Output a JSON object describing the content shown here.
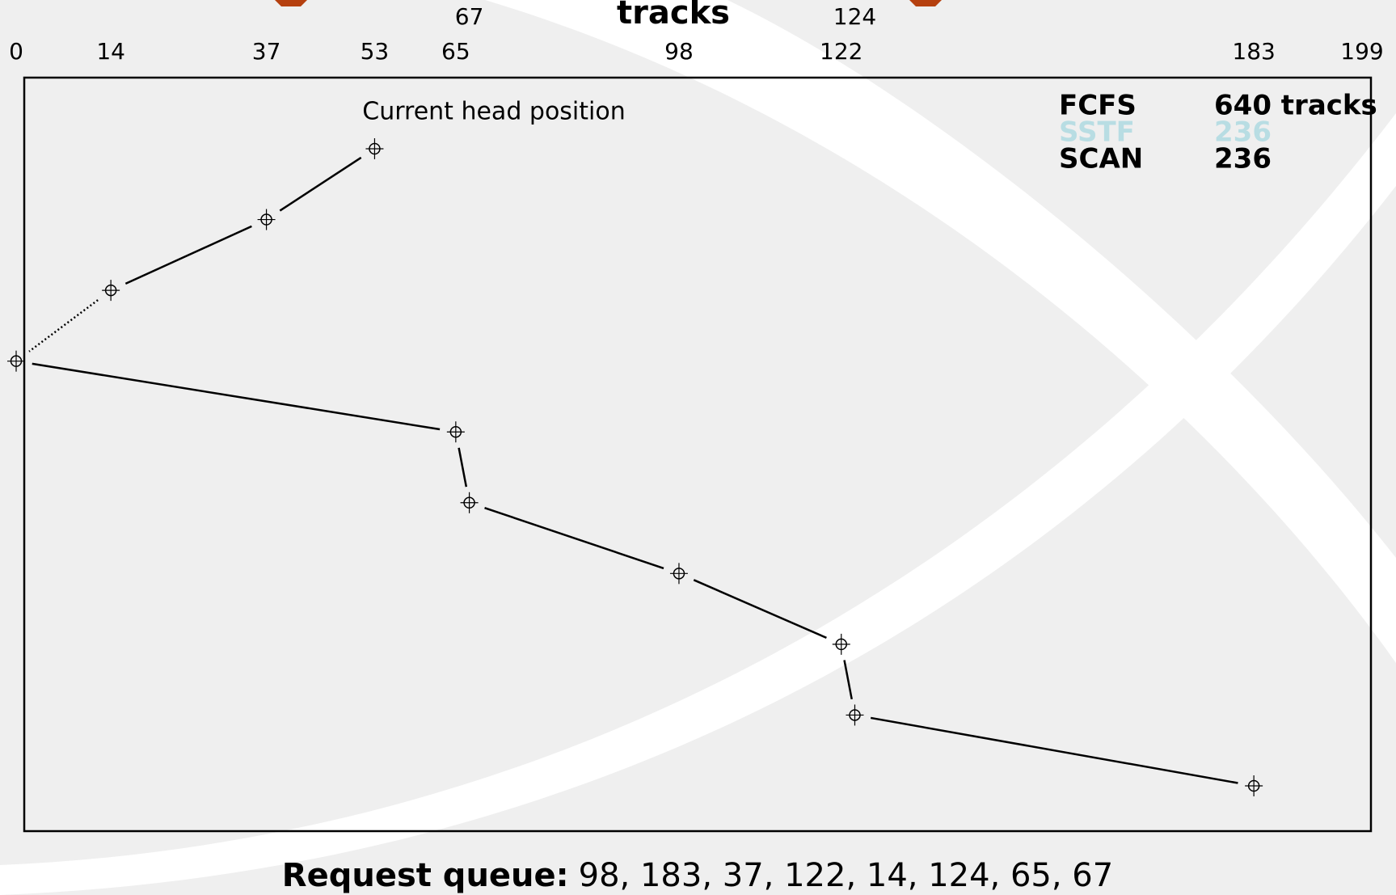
{
  "chart_data": {
    "type": "line",
    "title": "tracks",
    "annotation": "Current head position",
    "series": [
      {
        "name": "SCAN",
        "color": "#000000",
        "values": [
          53,
          37,
          14,
          0,
          65,
          67,
          98,
          122,
          124,
          183
        ],
        "segment_styles": [
          "solid",
          "solid",
          "dotted",
          "solid",
          "solid",
          "solid",
          "solid",
          "solid",
          "solid"
        ]
      }
    ],
    "xlim": [
      0,
      199
    ],
    "xticks": [
      0,
      14,
      37,
      53,
      65,
      67,
      98,
      122,
      124,
      183,
      199
    ]
  },
  "totals": [
    {
      "algorithm": "FCFS",
      "total": "640 tracks",
      "color": "#000000"
    },
    {
      "algorithm": "SSTF",
      "total": "236",
      "color": "#b8dde3"
    },
    {
      "algorithm": "SCAN",
      "total": "236",
      "color": "#000000"
    }
  ],
  "request_queue": {
    "label": "Request queue:",
    "items": "98, 183, 37, 122, 14, 124, 65, 67"
  }
}
